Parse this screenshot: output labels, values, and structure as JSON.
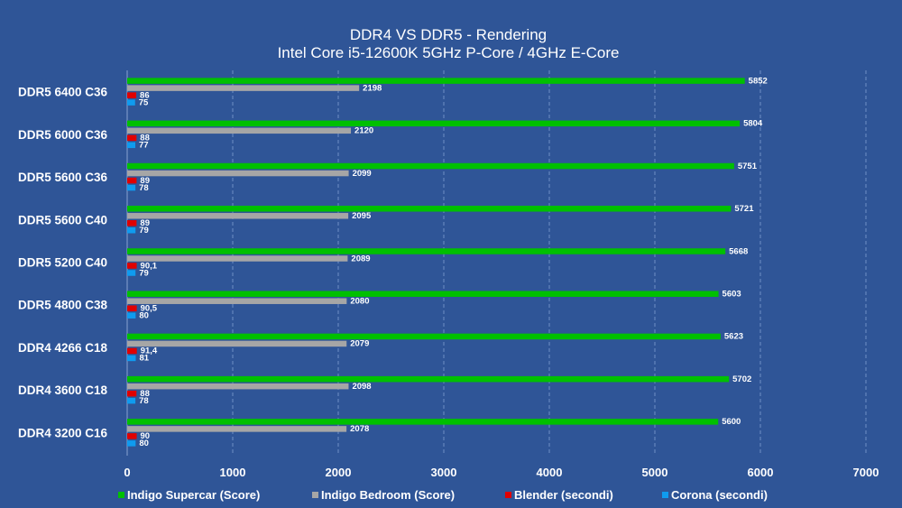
{
  "chart_data": {
    "type": "bar",
    "orientation": "horizontal",
    "title": "DDR4 VS DDR5 - Rendering",
    "subtitle": "Intel Core i5-12600K 5GHz P-Core / 4GHz E-Core",
    "categories": [
      "DDR5 6400 C36",
      "DDR5 6000 C36",
      "DDR5 5600 C36",
      "DDR5 5600 C40",
      "DDR5 5200 C40",
      "DDR5 4800 C38",
      "DDR4 4266 C18",
      "DDR4 3600 C18",
      "DDR4 3200 C16"
    ],
    "series": [
      {
        "name": "Indigo Supercar (Score)",
        "color": "#00c000",
        "values": [
          5852,
          5804,
          5751,
          5721,
          5668,
          5603,
          5623,
          5702,
          5600
        ],
        "labels": [
          "5852",
          "5804",
          "5751",
          "5721",
          "5668",
          "5603",
          "5623",
          "5702",
          "5600"
        ]
      },
      {
        "name": "Indigo Bedroom (Score)",
        "color": "#a6a6a6",
        "values": [
          2198,
          2120,
          2099,
          2095,
          2089,
          2080,
          2079,
          2098,
          2078
        ],
        "labels": [
          "2198",
          "2120",
          "2099",
          "2095",
          "2089",
          "2080",
          "2079",
          "2098",
          "2078"
        ]
      },
      {
        "name": "Blender (secondi)",
        "color": "#e00000",
        "values": [
          86,
          88,
          89,
          89,
          90.1,
          90.5,
          91.4,
          88,
          90
        ],
        "labels": [
          "86",
          "88",
          "89",
          "89",
          "90,1",
          "90,5",
          "91,4",
          "88",
          "90"
        ]
      },
      {
        "name": "Corona (secondi)",
        "color": "#0f9bef",
        "values": [
          75,
          77,
          78,
          79,
          79,
          80,
          81,
          78,
          80
        ],
        "labels": [
          "75",
          "77",
          "78",
          "79",
          "79",
          "80",
          "81",
          "78",
          "80"
        ]
      }
    ],
    "xlim": [
      0,
      7000
    ],
    "xticks": [
      "0",
      "1000",
      "2000",
      "3000",
      "4000",
      "5000",
      "6000",
      "7000"
    ],
    "xtick_values": [
      0,
      1000,
      2000,
      3000,
      4000,
      5000,
      6000,
      7000
    ],
    "grid": "vertical dashed",
    "legend": "bottom",
    "background": "#2f5597"
  }
}
